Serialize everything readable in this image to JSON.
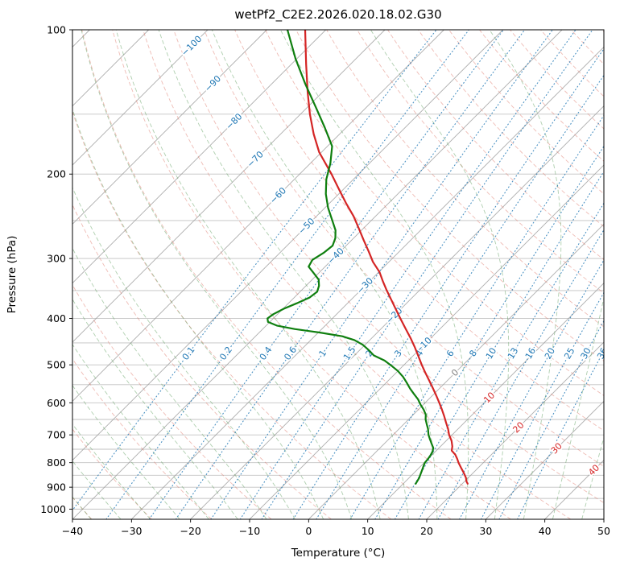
{
  "title": "wetPf2_C2E2.2026.020.18.02.G30",
  "axes": {
    "xlabel": "Temperature (°C)",
    "ylabel": "Pressure (hPa)",
    "x_ticks": [
      {
        "v": -40,
        "label": "−40"
      },
      {
        "v": -30,
        "label": "−30"
      },
      {
        "v": -20,
        "label": "−20"
      },
      {
        "v": -10,
        "label": "−10"
      },
      {
        "v": 0,
        "label": "0"
      },
      {
        "v": 10,
        "label": "10"
      },
      {
        "v": 20,
        "label": "20"
      },
      {
        "v": 30,
        "label": "30"
      },
      {
        "v": 40,
        "label": "40"
      },
      {
        "v": 50,
        "label": "50"
      }
    ],
    "y_ticks": [
      {
        "v": 100,
        "label": "100"
      },
      {
        "v": 200,
        "label": "200"
      },
      {
        "v": 300,
        "label": "300"
      },
      {
        "v": 400,
        "label": "400"
      },
      {
        "v": 500,
        "label": "500"
      },
      {
        "v": 600,
        "label": "600"
      },
      {
        "v": 700,
        "label": "700"
      },
      {
        "v": 800,
        "label": "800"
      },
      {
        "v": 900,
        "label": "900"
      },
      {
        "v": 1000,
        "label": "1000"
      }
    ]
  },
  "chart_data": {
    "type": "line",
    "plot_kind": "skew-t-log-p",
    "title": "wetPf2_C2E2.2026.020.18.02.G30",
    "xlabel": "Temperature (°C)",
    "ylabel": "Pressure (hPa)",
    "x_range_c": [
      -40,
      50
    ],
    "pressure_range_hpa": [
      100,
      1050
    ],
    "skew_deg": 45,
    "series": [
      {
        "name": "temperature",
        "color": "#d42525",
        "points": [
          [
            100,
            -83.5
          ],
          [
            118,
            -77.5
          ],
          [
            135,
            -72.5
          ],
          [
            150,
            -68.4
          ],
          [
            165,
            -64.4
          ],
          [
            180,
            -60.4
          ],
          [
            200,
            -54.6
          ],
          [
            215,
            -50.8
          ],
          [
            230,
            -47.2
          ],
          [
            245,
            -43.7
          ],
          [
            260,
            -40.7
          ],
          [
            275,
            -37.9
          ],
          [
            290,
            -35.2
          ],
          [
            305,
            -32.7
          ],
          [
            320,
            -29.9
          ],
          [
            335,
            -27.7
          ],
          [
            350,
            -25.5
          ],
          [
            365,
            -23.3
          ],
          [
            380,
            -21.2
          ],
          [
            400,
            -18.5
          ],
          [
            420,
            -15.9
          ],
          [
            440,
            -13.4
          ],
          [
            460,
            -11.1
          ],
          [
            480,
            -9.0
          ],
          [
            500,
            -7.0
          ],
          [
            520,
            -5.0
          ],
          [
            540,
            -3.0
          ],
          [
            560,
            -1.1
          ],
          [
            580,
            0.7
          ],
          [
            600,
            2.4
          ],
          [
            620,
            4.0
          ],
          [
            640,
            5.5
          ],
          [
            660,
            6.9
          ],
          [
            680,
            8.3
          ],
          [
            700,
            9.5
          ],
          [
            720,
            10.9
          ],
          [
            740,
            12.0
          ],
          [
            755,
            12.6
          ],
          [
            770,
            13.9
          ],
          [
            785,
            14.9
          ],
          [
            800,
            15.8
          ],
          [
            820,
            17.1
          ],
          [
            840,
            18.4
          ],
          [
            860,
            19.6
          ],
          [
            875,
            20.3
          ],
          [
            885,
            20.9
          ]
        ]
      },
      {
        "name": "dewpoint",
        "color": "#0f7f0f",
        "points": [
          [
            100,
            -86.5
          ],
          [
            115,
            -80.2
          ],
          [
            130,
            -74.2
          ],
          [
            145,
            -68.6
          ],
          [
            160,
            -63.6
          ],
          [
            175,
            -59.2
          ],
          [
            190,
            -56.6
          ],
          [
            205,
            -54.6
          ],
          [
            220,
            -52.2
          ],
          [
            235,
            -49.5
          ],
          [
            250,
            -46.6
          ],
          [
            262,
            -44.4
          ],
          [
            272,
            -43.1
          ],
          [
            282,
            -42.3
          ],
          [
            292,
            -42.6
          ],
          [
            302,
            -43.3
          ],
          [
            312,
            -42.8
          ],
          [
            322,
            -40.8
          ],
          [
            332,
            -38.9
          ],
          [
            342,
            -37.8
          ],
          [
            352,
            -37.1
          ],
          [
            362,
            -37.4
          ],
          [
            372,
            -38.6
          ],
          [
            382,
            -39.9
          ],
          [
            392,
            -40.7
          ],
          [
            400,
            -41.0
          ],
          [
            407,
            -40.3
          ],
          [
            414,
            -38.2
          ],
          [
            421,
            -34.6
          ],
          [
            428,
            -29.8
          ],
          [
            436,
            -25.3
          ],
          [
            444,
            -22.6
          ],
          [
            454,
            -20.4
          ],
          [
            465,
            -18.6
          ],
          [
            478,
            -16.7
          ],
          [
            490,
            -14.0
          ],
          [
            502,
            -12.0
          ],
          [
            515,
            -10.0
          ],
          [
            530,
            -8.1
          ],
          [
            545,
            -6.5
          ],
          [
            560,
            -5.0
          ],
          [
            575,
            -3.4
          ],
          [
            590,
            -1.8
          ],
          [
            605,
            -0.5
          ],
          [
            620,
            0.9
          ],
          [
            635,
            2.1
          ],
          [
            650,
            2.9
          ],
          [
            665,
            3.9
          ],
          [
            680,
            4.9
          ],
          [
            700,
            6.0
          ],
          [
            715,
            7.0
          ],
          [
            730,
            8.0
          ],
          [
            745,
            9.0
          ],
          [
            758,
            9.5
          ],
          [
            772,
            9.8
          ],
          [
            786,
            10.0
          ],
          [
            800,
            10.1
          ],
          [
            815,
            10.5
          ],
          [
            830,
            10.9
          ],
          [
            845,
            11.3
          ],
          [
            860,
            11.7
          ],
          [
            872,
            11.9
          ],
          [
            885,
            12.1
          ]
        ]
      }
    ],
    "isotherms": {
      "start": -160,
      "end": 50,
      "step": 10,
      "color": "#999999",
      "label_positions": [
        {
          "label": "−100",
          "t": -100,
          "y": 57,
          "color": "#1f77b4"
        },
        {
          "label": "−90",
          "t": -90,
          "y": 104,
          "color": "#1f77b4"
        },
        {
          "label": "−80",
          "t": -80,
          "y": 151,
          "color": "#1f77b4"
        },
        {
          "label": "−70",
          "t": -70,
          "y": 198,
          "color": "#1f77b4"
        },
        {
          "label": "−60",
          "t": -60,
          "y": 243,
          "color": "#1f77b4"
        },
        {
          "label": "−50",
          "t": -50,
          "y": 281,
          "color": "#1f77b4"
        },
        {
          "label": "−40",
          "t": -40,
          "y": 318,
          "color": "#1f77b4"
        },
        {
          "label": "−30",
          "t": -30,
          "y": 355,
          "color": "#1f77b4"
        },
        {
          "label": "−20",
          "t": -20,
          "y": 392,
          "color": "#1f77b4"
        },
        {
          "label": "−10",
          "t": -10,
          "y": 429,
          "color": "#1f77b4"
        },
        {
          "label": "0",
          "t": 0,
          "y": 463,
          "color": "#7f7f7f"
        },
        {
          "label": "10",
          "t": 10,
          "y": 494,
          "color": "#d62728"
        },
        {
          "label": "20",
          "t": 20,
          "y": 531,
          "color": "#d62728"
        },
        {
          "label": "30",
          "t": 30,
          "y": 557,
          "color": "#d62728"
        },
        {
          "label": "40",
          "t": 40,
          "y": 584,
          "color": "#d62728"
        }
      ]
    },
    "dry_adiabats": {
      "start_c": -40,
      "end_c": 200,
      "step_c": 10,
      "color": "#e0796b"
    },
    "moist_adiabats": {
      "start_c": -40,
      "end_c": 45,
      "step_c": 5,
      "color": "#5fa05f"
    },
    "mixing_ratio": {
      "values_g_kg": [
        0.1,
        0.2,
        0.4,
        0.6,
        1,
        1.5,
        2,
        3,
        4,
        6,
        8,
        10,
        13,
        16,
        20,
        25,
        30,
        36
      ],
      "color": "#1f77b4",
      "label_y": 439
    },
    "pressure_gridlines": {
      "start": 100,
      "end": 1000,
      "step": 50,
      "color": "#b3b3b3"
    }
  }
}
